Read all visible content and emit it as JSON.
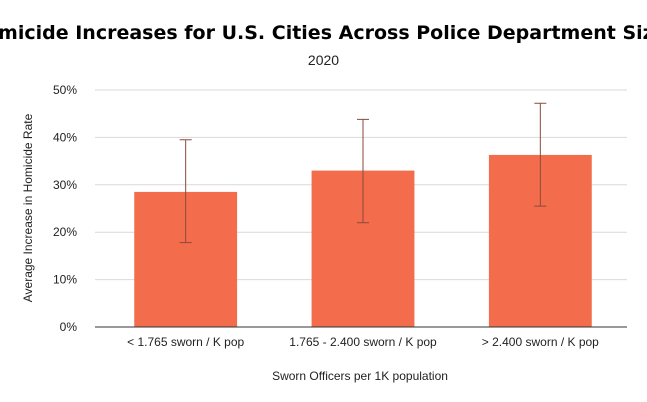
{
  "chart_data": {
    "type": "bar",
    "title": "Homicide Increases for U.S. Cities Across Police Department Sizes",
    "subtitle": "2020",
    "xlabel": "Sworn Officers per 1K population",
    "ylabel": "Average Increase in Homicide Rate",
    "categories": [
      "< 1.765 sworn / K pop",
      "1.765 - 2.400 sworn / K pop",
      "> 2.400 sworn / K pop"
    ],
    "values": [
      28.5,
      33.0,
      36.3
    ],
    "error_low": [
      17.8,
      22.0,
      25.5
    ],
    "error_high": [
      39.5,
      43.8,
      47.2
    ],
    "ylim": [
      0,
      50
    ],
    "yticks": [
      0,
      10,
      20,
      30,
      40,
      50
    ],
    "ytick_labels": [
      "0%",
      "10%",
      "20%",
      "30%",
      "40%",
      "50%"
    ],
    "grid": true,
    "legend": "none",
    "colors": {
      "bar": "#F36C4C",
      "error_bar": "#8B4A3C",
      "grid": "#D9D9D9",
      "axis": "#333333"
    }
  }
}
